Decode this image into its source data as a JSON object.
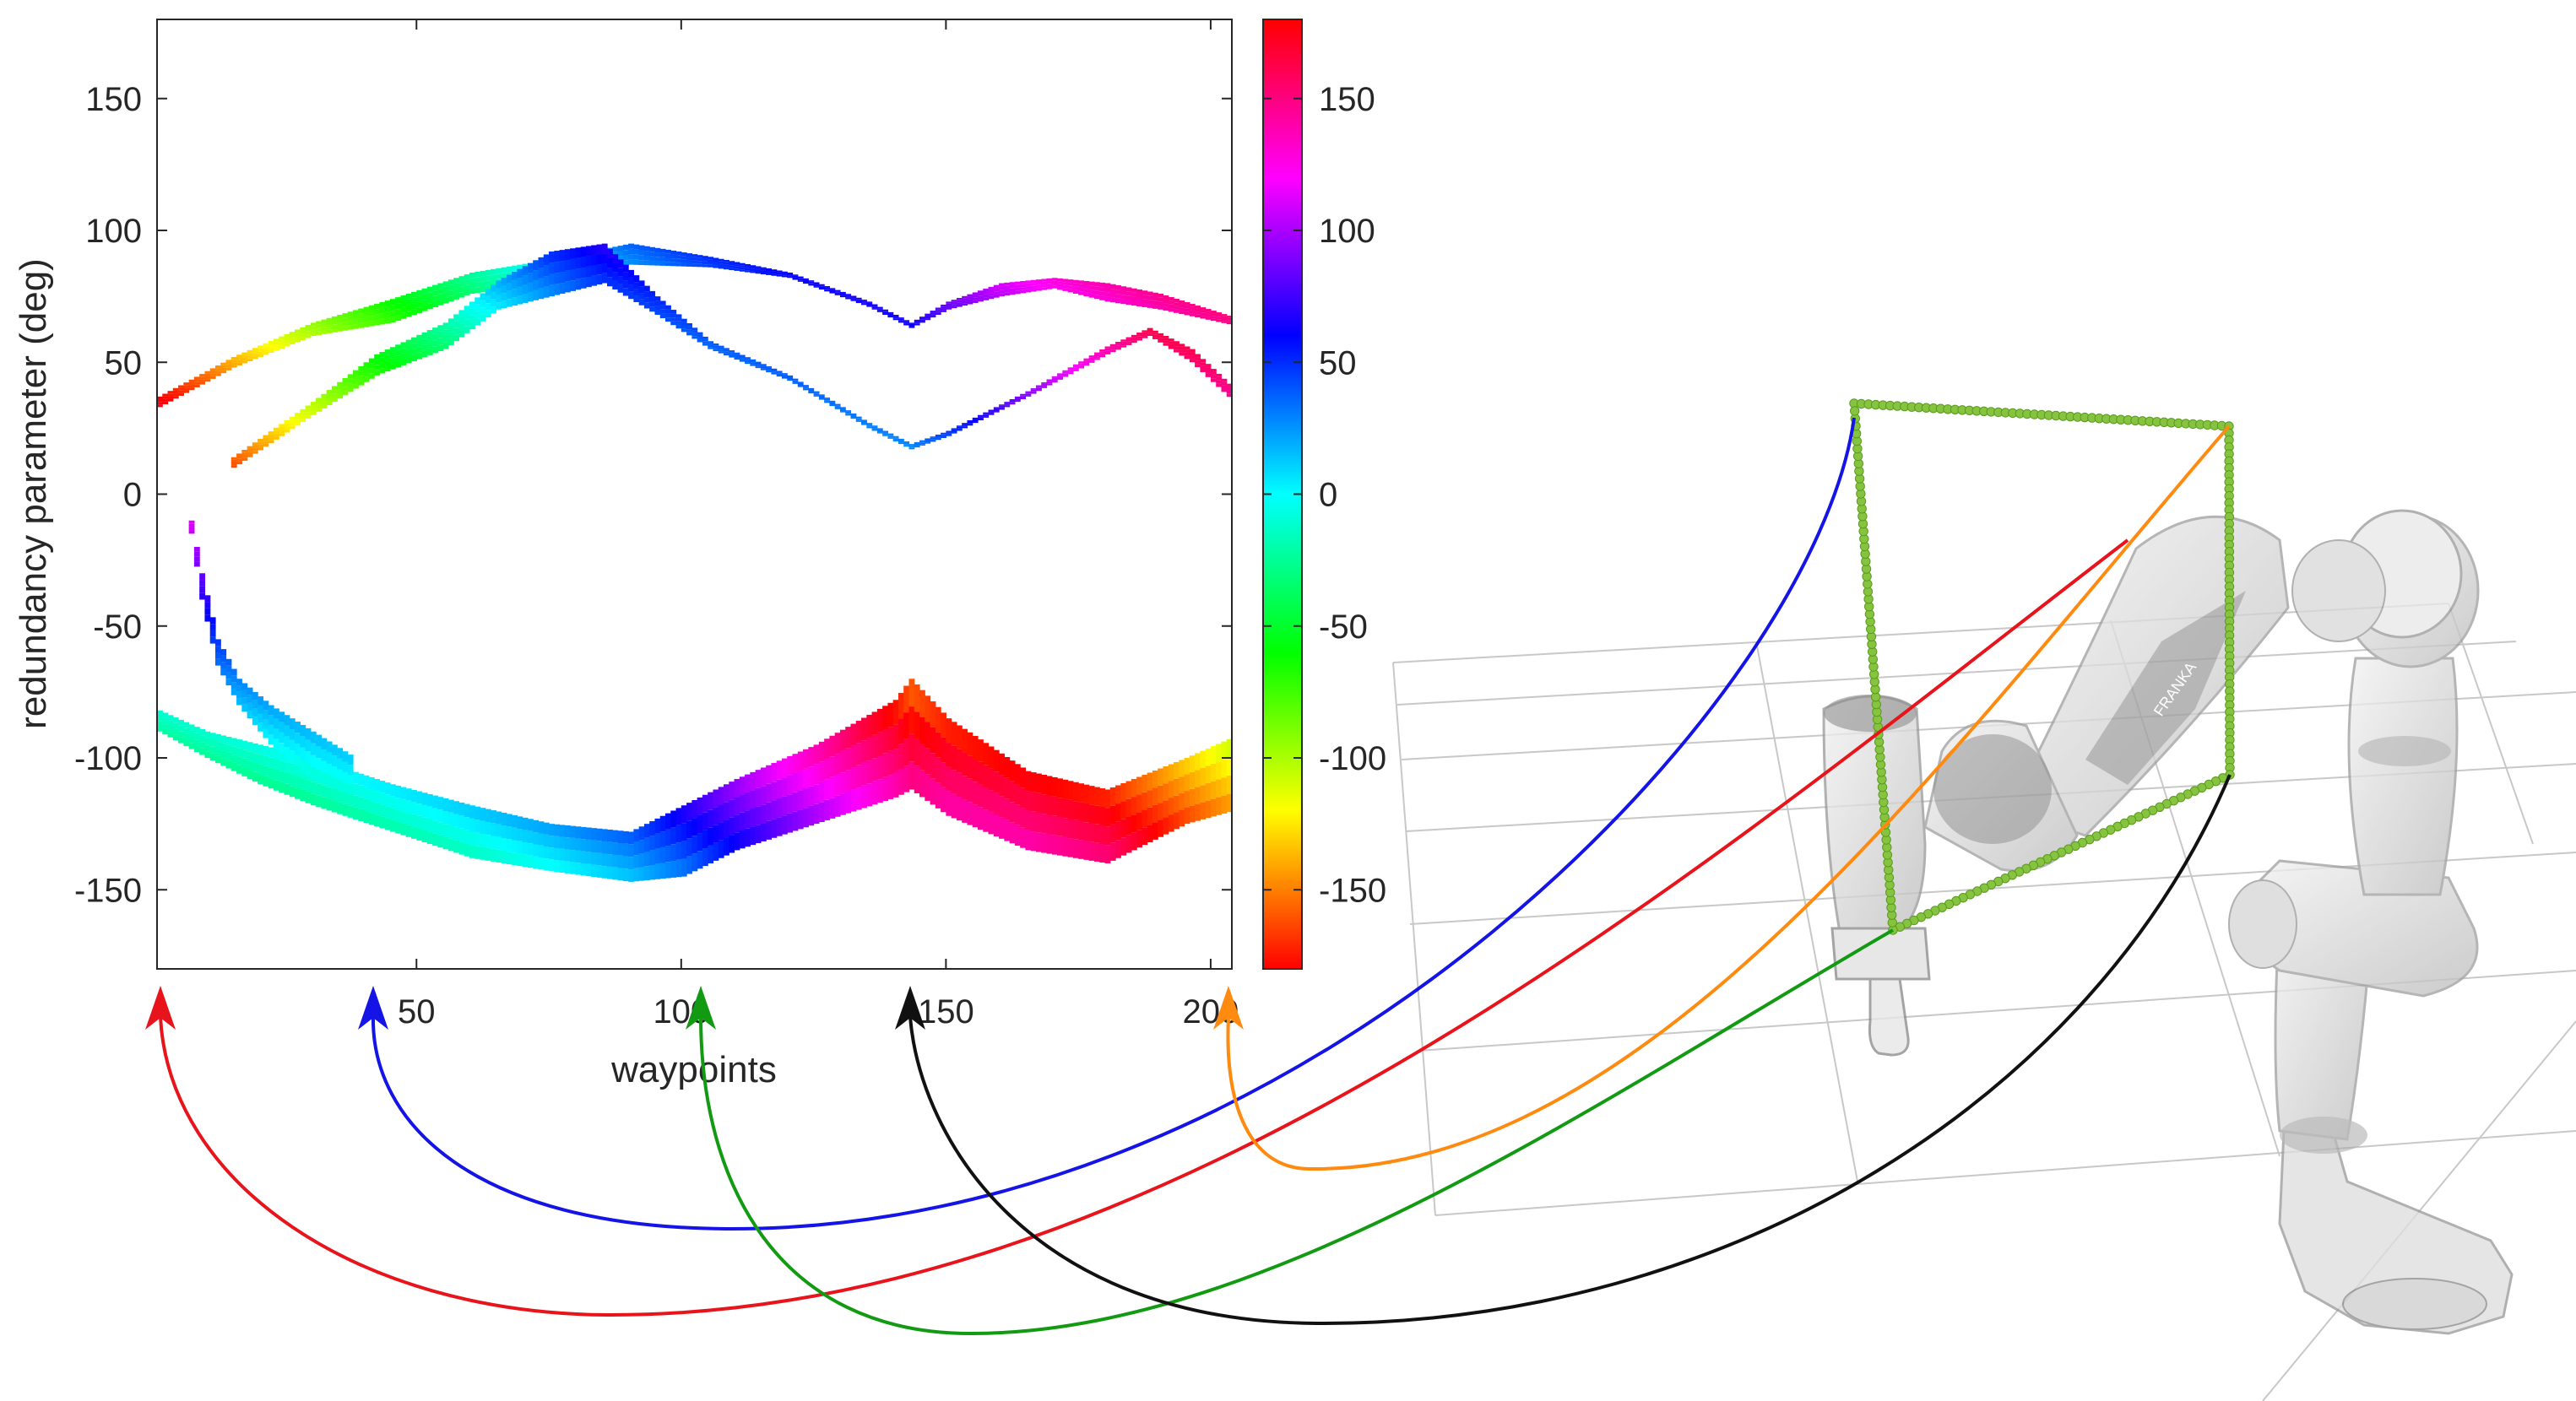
{
  "chart_data": {
    "type": "heatmap",
    "title": "",
    "xlabel": "waypoints",
    "ylabel": "redundancy parameter (deg)",
    "xlim": [
      1,
      204
    ],
    "ylim": [
      -180,
      180
    ],
    "xticks": [
      50,
      100,
      150,
      200
    ],
    "yticks": [
      -150,
      -100,
      -50,
      0,
      50,
      100,
      150
    ],
    "colorbar": {
      "range": [
        -180,
        180
      ],
      "ticks": [
        -150,
        -100,
        -50,
        0,
        50,
        100,
        150
      ],
      "colormap": "hsv"
    },
    "grid": false,
    "series": [
      {
        "band": "upper-outer",
        "x": [
          1,
          15,
          30,
          45,
          60,
          75,
          90,
          105,
          120,
          135,
          143,
          150,
          160,
          170,
          180,
          190,
          204
        ],
        "y_low": [
          33,
          48,
          60,
          65,
          76,
          80,
          87,
          86,
          82,
          71,
          63,
          70,
          75,
          78,
          73,
          70,
          64
        ],
        "y_high": [
          37,
          52,
          65,
          74,
          84,
          89,
          95,
          90,
          84,
          73,
          65,
          73,
          80,
          82,
          80,
          76,
          67
        ]
      },
      {
        "band": "upper-inner",
        "x": [
          15,
          30,
          42,
          55,
          65,
          75,
          85,
          95,
          105,
          120,
          135,
          143,
          150,
          165,
          180,
          188,
          196,
          204
        ],
        "y_low": [
          10,
          30,
          45,
          55,
          70,
          75,
          80,
          68,
          55,
          43,
          25,
          17,
          22,
          37,
          53,
          60,
          50,
          35
        ],
        "y_high": [
          14,
          35,
          53,
          65,
          81,
          92,
          95,
          75,
          58,
          45,
          27,
          19,
          24,
          39,
          56,
          63,
          55,
          40
        ]
      },
      {
        "band": "lower",
        "x": [
          1,
          10,
          20,
          30,
          45,
          60,
          75,
          90,
          100,
          110,
          125,
          140,
          143,
          150,
          165,
          180,
          195,
          204
        ],
        "y_low": [
          -90,
          -100,
          -110,
          -118,
          -128,
          -138,
          -143,
          -147,
          -145,
          -135,
          -125,
          -115,
          -112,
          -122,
          -135,
          -140,
          -125,
          -120
        ],
        "y_high": [
          -82,
          -90,
          -95,
          -100,
          -110,
          -118,
          -125,
          -128,
          -118,
          -108,
          -95,
          -78,
          -70,
          -85,
          -105,
          -112,
          -100,
          -92
        ]
      },
      {
        "band": "left-lobe",
        "x": [
          7,
          9,
          12,
          16,
          22,
          30,
          38
        ],
        "y_low": [
          -15,
          -40,
          -65,
          -80,
          -95,
          -108,
          -115
        ],
        "y_high": [
          -10,
          -30,
          -55,
          -70,
          -80,
          -90,
          -100
        ]
      }
    ]
  },
  "annotations": {
    "arrow_colors": [
      "#e8141b",
      "#1414e6",
      "#129a12",
      "#111111",
      "#ff8a10"
    ],
    "waypoint_markers": [
      1,
      40,
      100,
      141,
      203
    ],
    "path_color": "#86c440",
    "robot": "robot-arm-icon"
  }
}
